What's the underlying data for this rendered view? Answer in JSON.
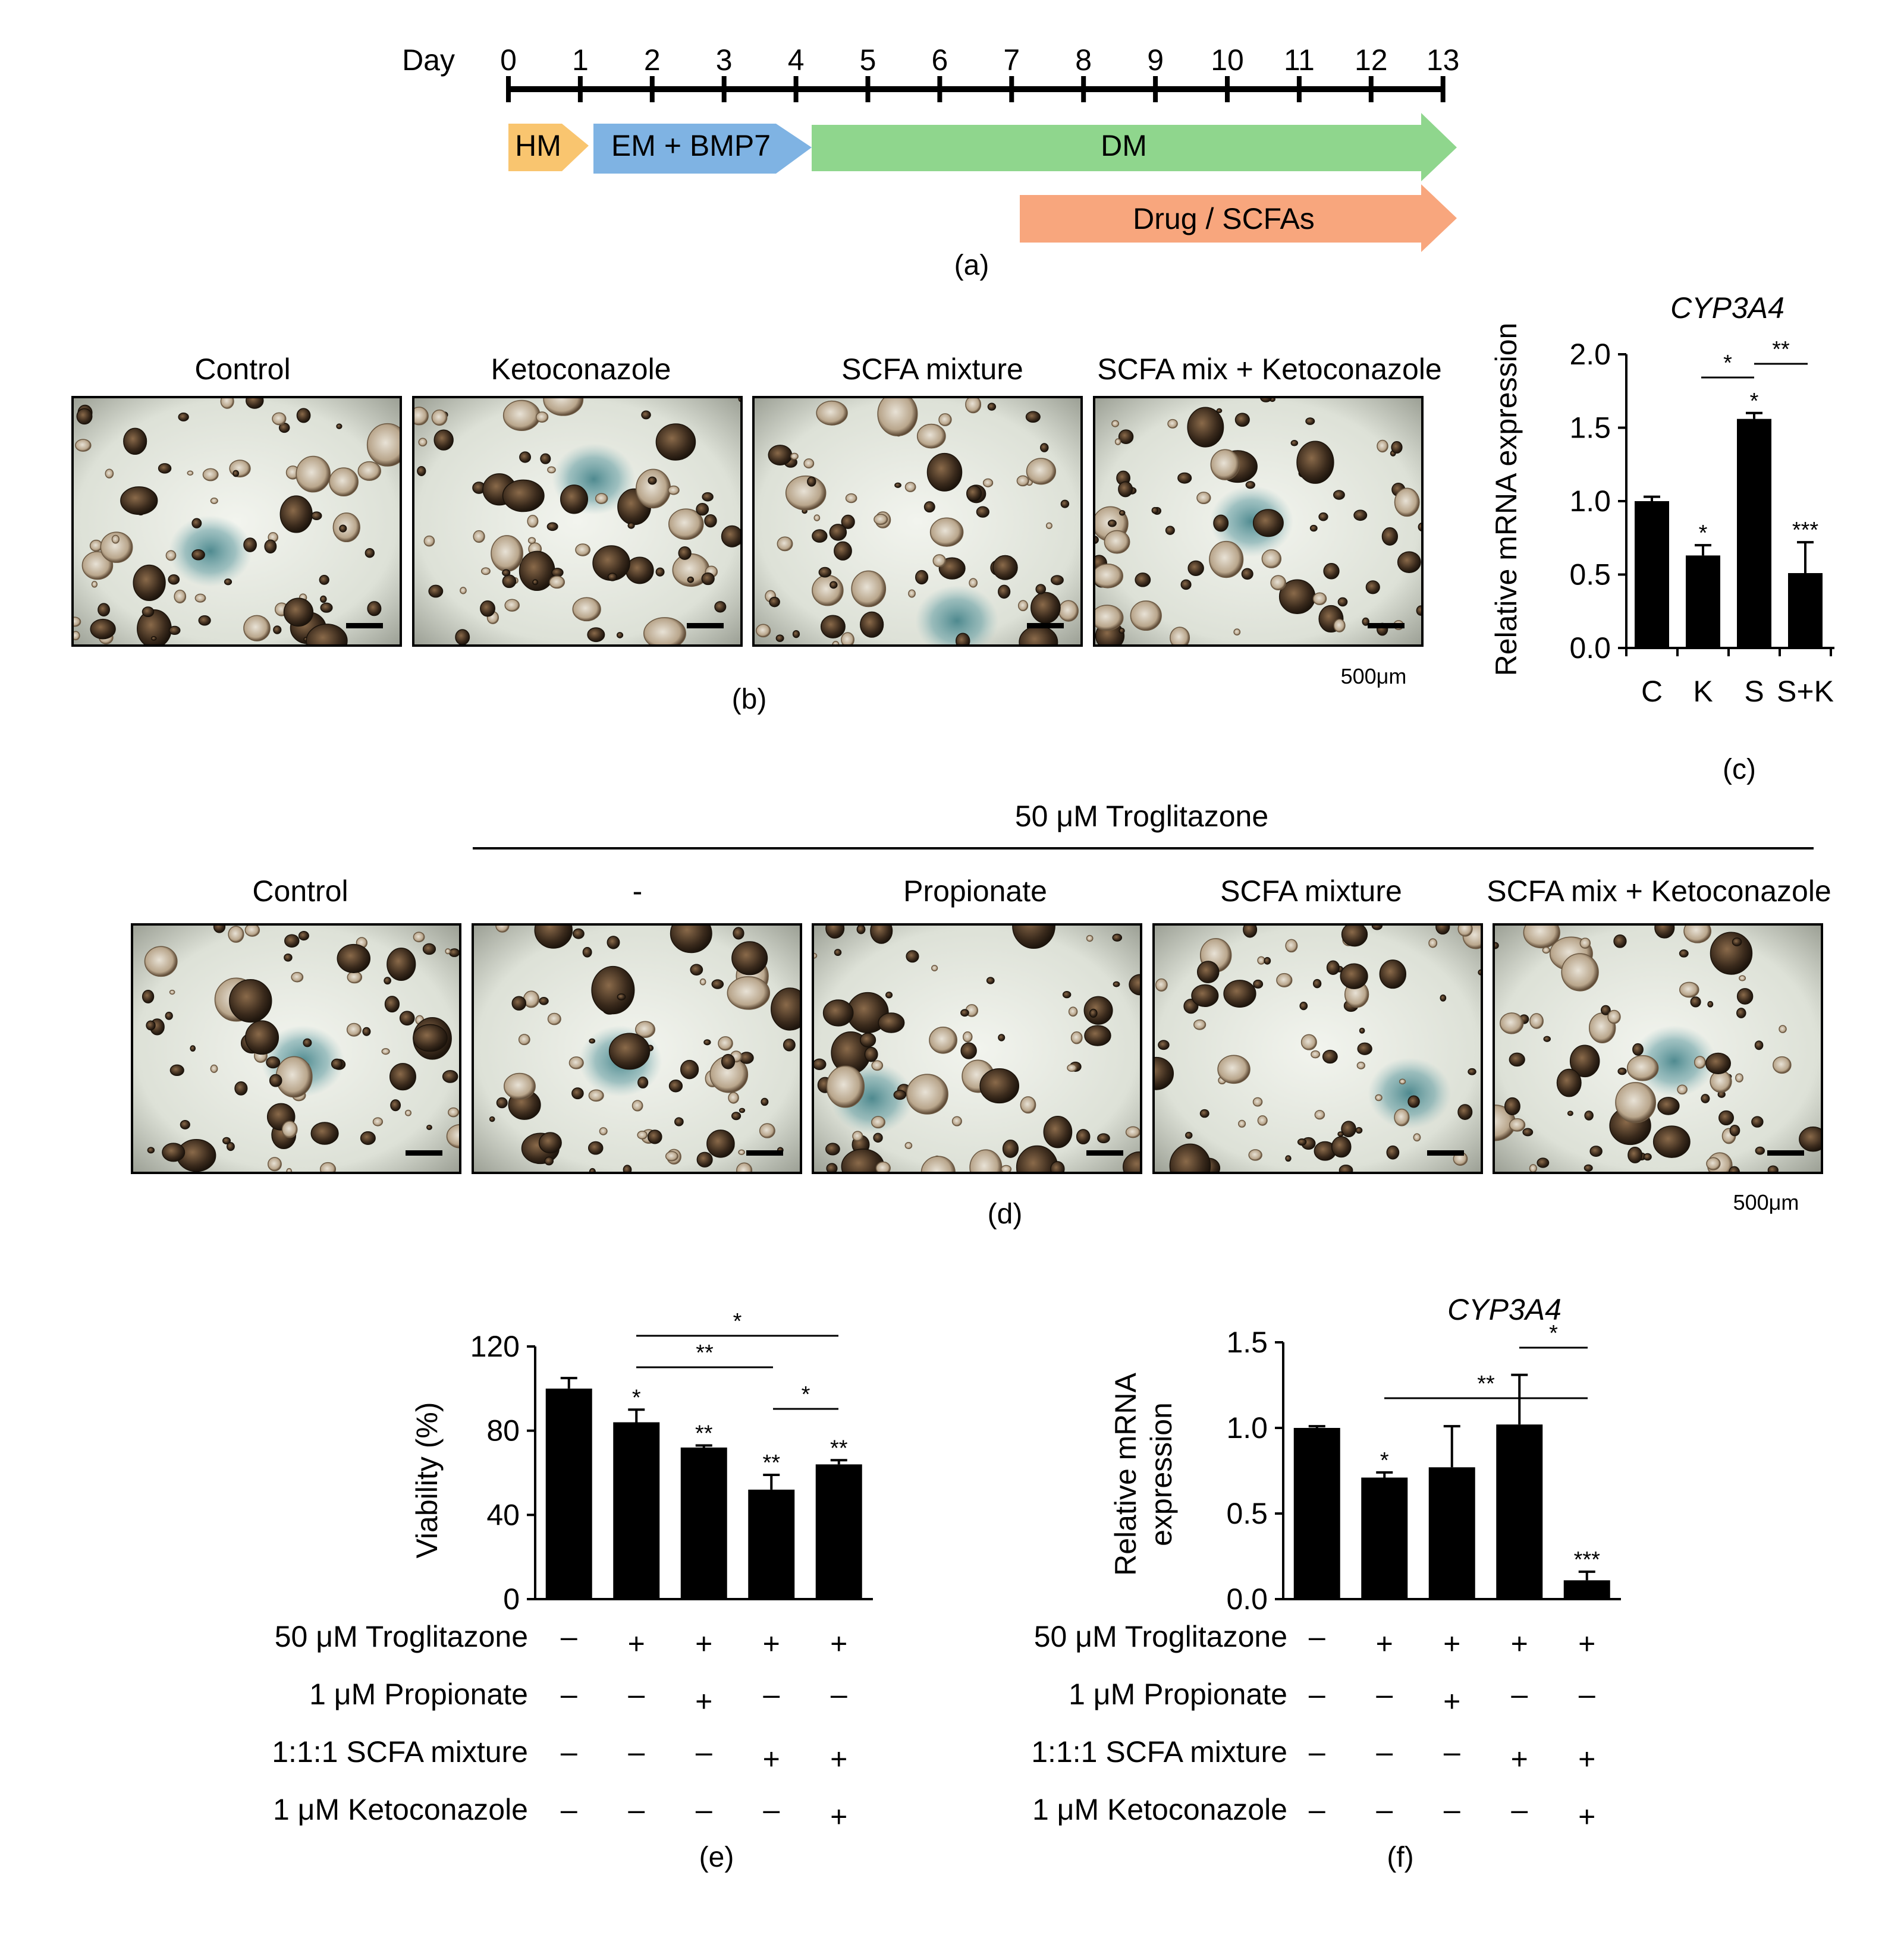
{
  "panel_a": {
    "day_word": "Day",
    "days": [
      "0",
      "1",
      "2",
      "3",
      "4",
      "5",
      "6",
      "7",
      "8",
      "9",
      "10",
      "11",
      "12",
      "13"
    ],
    "stages": [
      "HM",
      "EM + BMP7",
      "DM",
      "Drug / SCFAs"
    ],
    "stage_colors": [
      "#f9c56f",
      "#7fb3e3",
      "#8fd68d",
      "#f8a67d"
    ],
    "caption": "(a)"
  },
  "panel_b": {
    "labels": [
      "Control",
      "Ketoconazole",
      "SCFA mixture",
      "SCFA mix + Ketoconazole"
    ],
    "scale_text": "500μm",
    "caption": "(b)"
  },
  "panel_d": {
    "header": "50 μM Troglitazone",
    "labels": [
      "Control",
      "-",
      "Propionate",
      "SCFA mixture",
      "SCFA mix + Ketoconazole"
    ],
    "scale_text": "500μm",
    "caption": "(d)"
  },
  "chart_data": [
    {
      "panel": "c",
      "type": "bar",
      "title": "CYP3A4",
      "ylabel": "Relative mRNA expression",
      "categories": [
        "C",
        "K",
        "S",
        "S+K"
      ],
      "values": [
        1.0,
        0.63,
        1.56,
        0.51
      ],
      "errors": [
        0.03,
        0.07,
        0.04,
        0.21
      ],
      "significance": [
        "",
        "*",
        "*",
        "***"
      ],
      "comparisons": [
        {
          "from": "K",
          "to": "S",
          "label": "*"
        },
        {
          "from": "S",
          "to": "S+K",
          "label": "**"
        }
      ],
      "ylim": [
        0,
        2.0
      ],
      "yticks": [
        "0.0",
        "0.5",
        "1.0",
        "1.5",
        "2.0"
      ],
      "caption": "(c)"
    },
    {
      "panel": "e",
      "type": "bar",
      "ylabel": "Viability (%)",
      "values": [
        100,
        84,
        72,
        52,
        64
      ],
      "errors": [
        5,
        6,
        1,
        7,
        2
      ],
      "significance": [
        "",
        "*",
        "**",
        "**",
        "**"
      ],
      "comparisons": [
        {
          "from": 2,
          "to": 5,
          "label": "*"
        },
        {
          "from": 2,
          "to": 4,
          "label": "**"
        },
        {
          "from": 4,
          "to": 5,
          "label": "*"
        }
      ],
      "ylim": [
        0,
        120
      ],
      "yticks": [
        "0",
        "40",
        "80",
        "120"
      ],
      "conditions": [
        {
          "label": "50 μM Troglitazone",
          "marks": [
            "–",
            "+",
            "+",
            "+",
            "+"
          ]
        },
        {
          "label": "1 μM Propionate",
          "marks": [
            "–",
            "–",
            "+",
            "–",
            "–"
          ]
        },
        {
          "label": "1:1:1 SCFA mixture",
          "marks": [
            "–",
            "–",
            "–",
            "+",
            "+"
          ]
        },
        {
          "label": "1 μM Ketoconazole",
          "marks": [
            "–",
            "–",
            "–",
            "–",
            "+"
          ]
        }
      ],
      "caption": "(e)"
    },
    {
      "panel": "f",
      "type": "bar",
      "title": "CYP3A4",
      "ylabel": "Relative mRNA expression",
      "values": [
        1.0,
        0.71,
        0.77,
        1.02,
        0.11
      ],
      "errors": [
        0.01,
        0.03,
        0.24,
        0.29,
        0.05
      ],
      "significance": [
        "",
        "*",
        "",
        "",
        "***"
      ],
      "comparisons": [
        {
          "from": 4,
          "to": 5,
          "label": "*"
        },
        {
          "from": 2,
          "to": 5,
          "label": "**"
        }
      ],
      "ylim": [
        0,
        1.5
      ],
      "yticks": [
        "0.0",
        "0.5",
        "1.0",
        "1.5"
      ],
      "conditions": [
        {
          "label": "50 μM Troglitazone",
          "marks": [
            "–",
            "+",
            "+",
            "+",
            "+"
          ]
        },
        {
          "label": "1 μM Propionate",
          "marks": [
            "–",
            "–",
            "+",
            "–",
            "–"
          ]
        },
        {
          "label": "1:1:1 SCFA mixture",
          "marks": [
            "–",
            "–",
            "–",
            "+",
            "+"
          ]
        },
        {
          "label": "1 μM Ketoconazole",
          "marks": [
            "–",
            "–",
            "–",
            "–",
            "+"
          ]
        }
      ],
      "caption": "(f)"
    }
  ]
}
